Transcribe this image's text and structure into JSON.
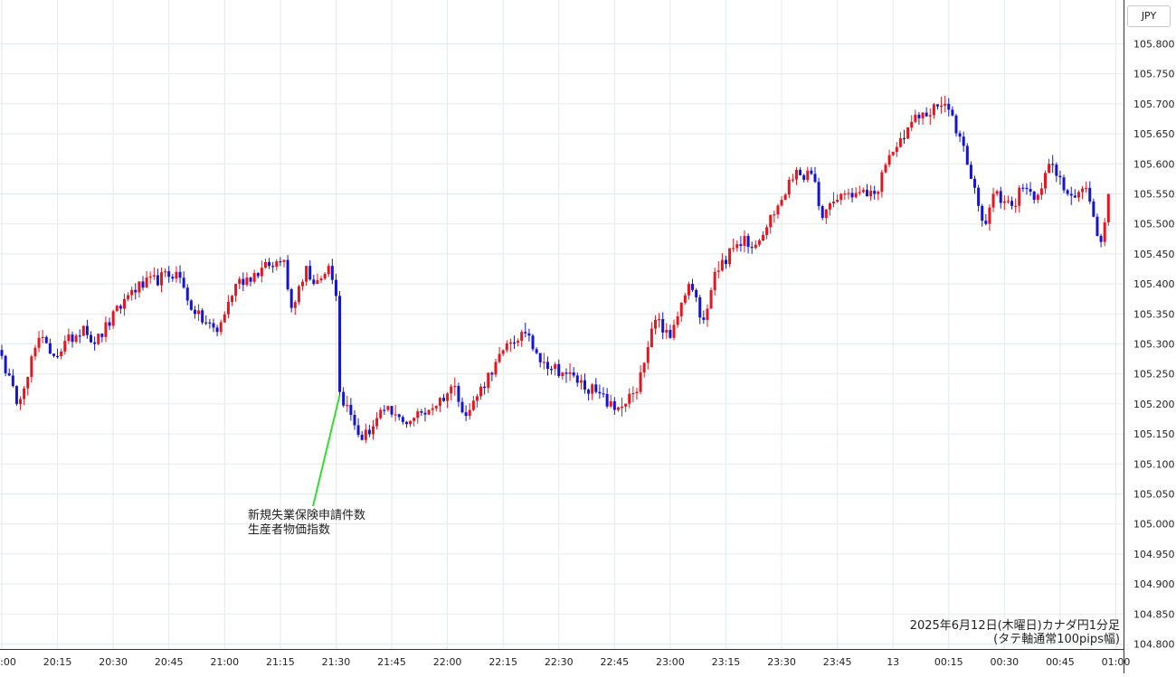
{
  "currency_label": "JPY",
  "annotation": {
    "line1": "新規失業保険申請件数",
    "line2": "生産者物価指数"
  },
  "caption": {
    "line1": "2025年6月12日(木曜日)カナダ円1分足",
    "line2": "(タテ軸通常100pips幅)"
  },
  "colors": {
    "up": "#e8141e",
    "down": "#1414d2",
    "grid": "#e3eaed",
    "annotation_line": "#33dd33"
  },
  "chart_data": {
    "type": "candlestick",
    "title": "",
    "xlabel": "",
    "ylabel": "",
    "ylim": [
      104.79,
      105.83
    ],
    "grid": true,
    "y_ticks": [
      "105.800",
      "105.750",
      "105.700",
      "105.650",
      "105.600",
      "105.550",
      "105.500",
      "105.450",
      "105.400",
      "105.350",
      "105.300",
      "105.250",
      "105.200",
      "105.150",
      "105.100",
      "105.050",
      "105.000",
      "104.950",
      "104.900",
      "104.850",
      "104.800"
    ],
    "x_ticks": [
      "20:00",
      "20:15",
      "20:30",
      "20:45",
      "21:00",
      "21:15",
      "21:30",
      "21:45",
      "22:00",
      "22:15",
      "22:30",
      "22:45",
      "23:00",
      "23:15",
      "23:30",
      "23:45",
      "13",
      "00:15",
      "00:30",
      "00:45",
      "01:00"
    ],
    "anchor_levels": [
      {
        "t": "20:00",
        "v": 105.28
      },
      {
        "t": "20:04",
        "v": 105.2
      },
      {
        "t": "20:10",
        "v": 105.31
      },
      {
        "t": "20:14",
        "v": 105.28
      },
      {
        "t": "20:22",
        "v": 105.33
      },
      {
        "t": "20:25",
        "v": 105.3
      },
      {
        "t": "20:35",
        "v": 105.39
      },
      {
        "t": "20:47",
        "v": 105.42
      },
      {
        "t": "20:52",
        "v": 105.35
      },
      {
        "t": "20:58",
        "v": 105.32
      },
      {
        "t": "21:03",
        "v": 105.4
      },
      {
        "t": "21:12",
        "v": 105.43
      },
      {
        "t": "21:16",
        "v": 105.44
      },
      {
        "t": "21:18",
        "v": 105.36
      },
      {
        "t": "21:22",
        "v": 105.43
      },
      {
        "t": "21:24",
        "v": 105.4
      },
      {
        "t": "21:28",
        "v": 105.43
      },
      {
        "t": "21:30",
        "v": 105.38
      },
      {
        "t": "21:31",
        "v": 105.22
      },
      {
        "t": "21:37",
        "v": 105.14
      },
      {
        "t": "21:43",
        "v": 105.19
      },
      {
        "t": "21:48",
        "v": 105.17
      },
      {
        "t": "21:55",
        "v": 105.19
      },
      {
        "t": "22:02",
        "v": 105.23
      },
      {
        "t": "22:05",
        "v": 105.18
      },
      {
        "t": "22:13",
        "v": 105.27
      },
      {
        "t": "22:20",
        "v": 105.32
      },
      {
        "t": "22:26",
        "v": 105.27
      },
      {
        "t": "22:32",
        "v": 105.25
      },
      {
        "t": "22:40",
        "v": 105.22
      },
      {
        "t": "22:45",
        "v": 105.19
      },
      {
        "t": "22:51",
        "v": 105.22
      },
      {
        "t": "22:56",
        "v": 105.34
      },
      {
        "t": "23:00",
        "v": 105.31
      },
      {
        "t": "23:05",
        "v": 105.4
      },
      {
        "t": "23:09",
        "v": 105.34
      },
      {
        "t": "23:12",
        "v": 105.42
      },
      {
        "t": "23:20",
        "v": 105.48
      },
      {
        "t": "23:22",
        "v": 105.46
      },
      {
        "t": "23:30",
        "v": 105.54
      },
      {
        "t": "23:34",
        "v": 105.59
      },
      {
        "t": "23:39",
        "v": 105.57
      },
      {
        "t": "23:41",
        "v": 105.51
      },
      {
        "t": "23:46",
        "v": 105.55
      },
      {
        "t": "23:55",
        "v": 105.55
      },
      {
        "t": "00:00",
        "v": 105.62
      },
      {
        "t": "00:05",
        "v": 105.67
      },
      {
        "t": "00:14",
        "v": 105.7
      },
      {
        "t": "00:19",
        "v": 105.63
      },
      {
        "t": "00:23",
        "v": 105.53
      },
      {
        "t": "00:25",
        "v": 105.5
      },
      {
        "t": "00:27",
        "v": 105.55
      },
      {
        "t": "00:32",
        "v": 105.53
      },
      {
        "t": "00:35",
        "v": 105.56
      },
      {
        "t": "00:38",
        "v": 105.54
      },
      {
        "t": "00:42",
        "v": 105.6
      },
      {
        "t": "00:47",
        "v": 105.55
      },
      {
        "t": "00:52",
        "v": 105.56
      },
      {
        "t": "00:55",
        "v": 105.48
      },
      {
        "t": "00:56",
        "v": 105.47
      },
      {
        "t": "00:58",
        "v": 105.55
      }
    ]
  }
}
